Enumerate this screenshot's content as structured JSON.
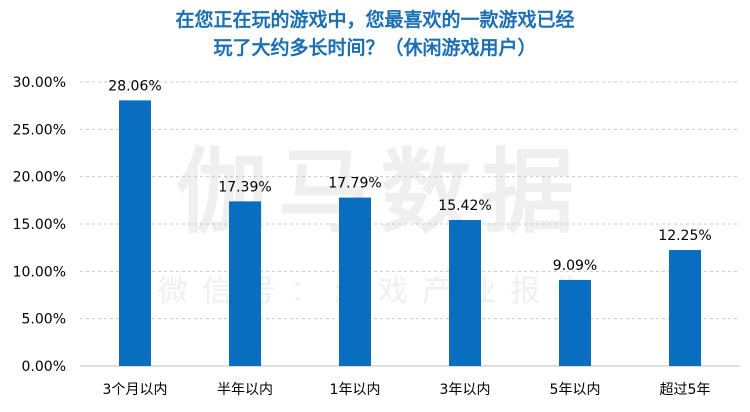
{
  "title_line1": "在您正在玩的游戏中，您最喜欢的一款游戏已经",
  "title_line2": "玩了大约多长时间？（休闲游戏用户）",
  "watermark": {
    "main": "伽马数据",
    "sub": "微信号：游戏产业报告"
  },
  "colors": {
    "bar": "#0a6ec0",
    "title": "#1a6fb5",
    "grid": "#c8c8c8"
  },
  "chart_data": {
    "type": "bar",
    "categories": [
      "3个月以内",
      "半年以内",
      "1年以内",
      "3年以内",
      "5年以内",
      "超过5年"
    ],
    "values": [
      28.06,
      17.39,
      17.79,
      15.42,
      9.09,
      12.25
    ],
    "value_labels": [
      "28.06%",
      "17.39%",
      "17.79%",
      "15.42%",
      "9.09%",
      "12.25%"
    ],
    "yticks": [
      "0.00%",
      "5.00%",
      "10.00%",
      "15.00%",
      "20.00%",
      "25.00%",
      "30.00%"
    ],
    "ylim": [
      0,
      30
    ],
    "grid": true,
    "legend": "none"
  }
}
